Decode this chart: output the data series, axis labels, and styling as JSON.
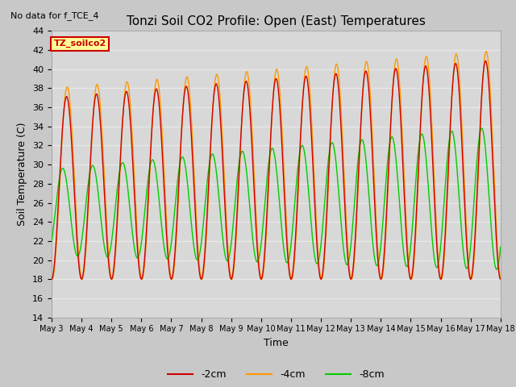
{
  "title": "Tonzi Soil CO2 Profile: Open (East) Temperatures",
  "no_data_label": "No data for f_TCE_4",
  "box_label": "TZ_soilco2",
  "ylabel": "Soil Temperature (C)",
  "xlabel": "Time",
  "ylim": [
    14,
    44
  ],
  "xtick_labels": [
    "May 3",
    "May 4",
    "May 5",
    "May 6",
    "May 7",
    "May 8",
    "May 9",
    "May 10",
    "May 11",
    "May 12",
    "May 13",
    "May 14",
    "May 15",
    "May 16",
    "May 17",
    "May 18"
  ],
  "color_2cm": "#cc0000",
  "color_4cm": "#ff9900",
  "color_8cm": "#00cc00",
  "legend_labels": [
    "-2cm",
    "-4cm",
    "-8cm"
  ],
  "box_bg": "#ffff99",
  "box_border": "#cc0000",
  "fig_bg": "#c8c8c8",
  "ax_bg": "#d8d8d8",
  "grid_color": "#e8e8e8"
}
